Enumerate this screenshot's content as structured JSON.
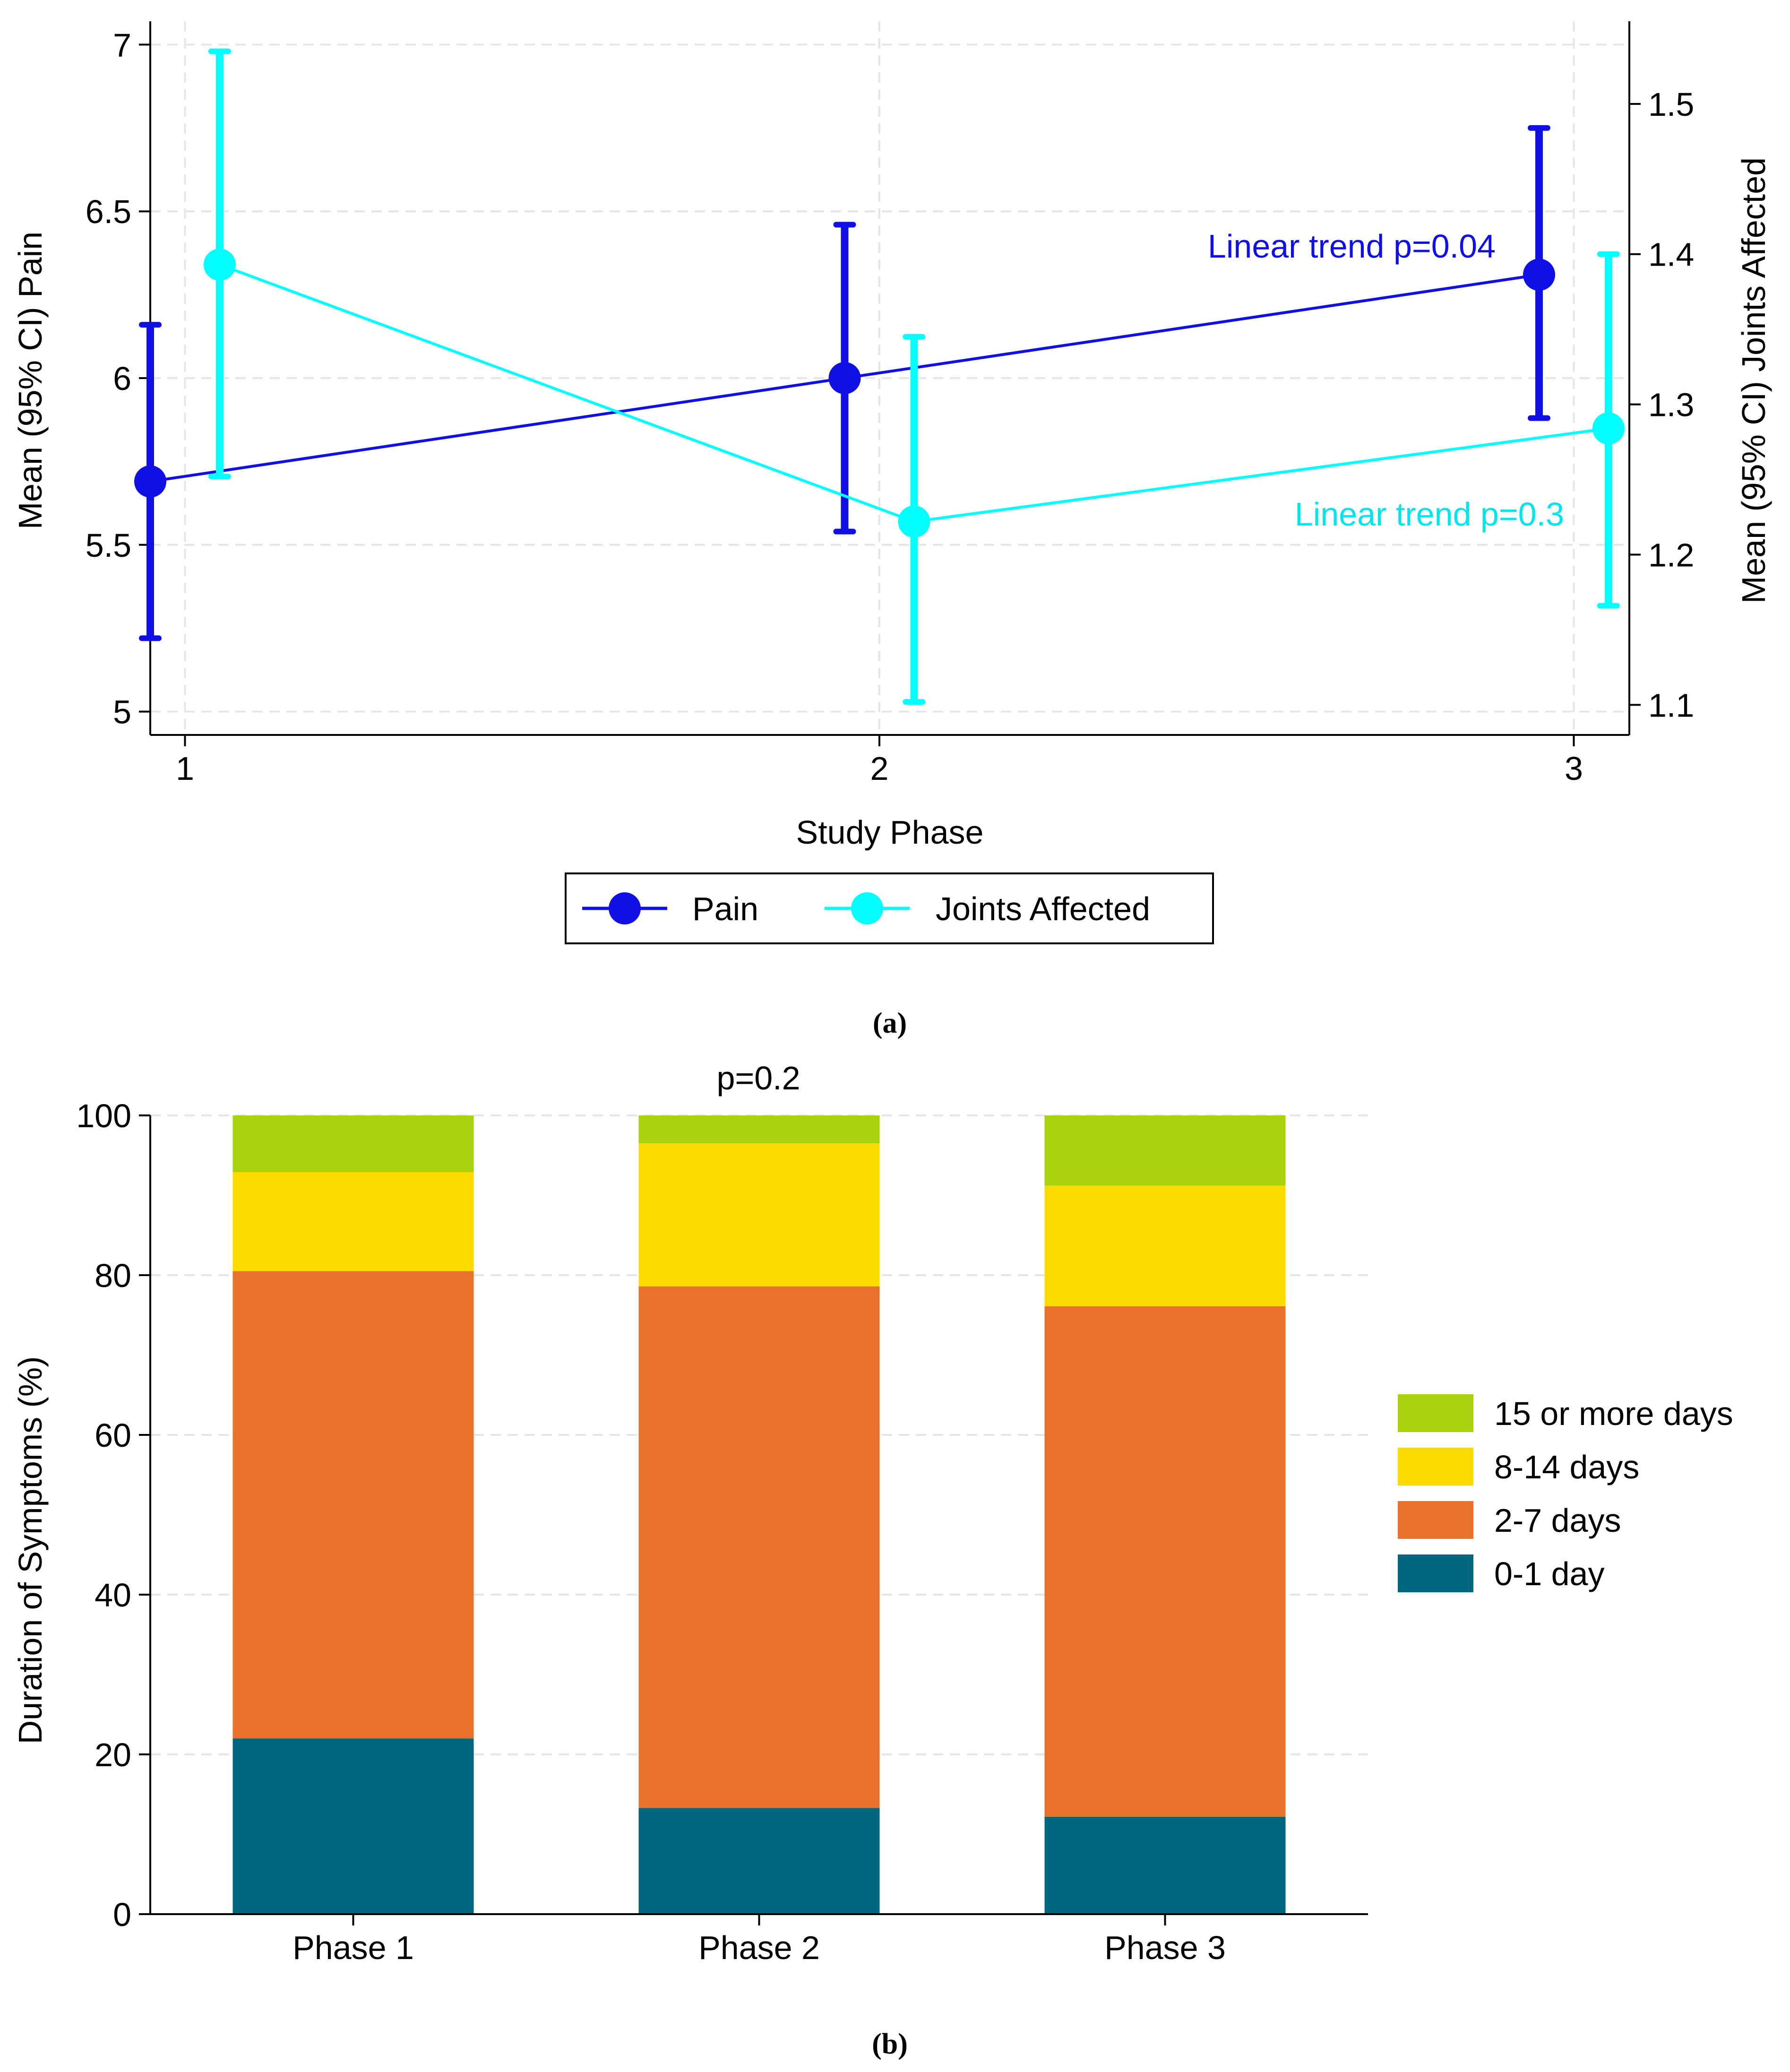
{
  "figure": {
    "panel_a_caption": "(a)",
    "panel_b_caption": "(b)"
  },
  "chart_data": [
    {
      "type": "line",
      "title": "",
      "xlabel": "Study Phase",
      "ylabel_left": "Mean (95% CI) Pain",
      "ylabel_right": "Mean (95% CI) Joints Affected",
      "x_ticks": [
        1,
        2,
        3
      ],
      "xlim": [
        0.95,
        3.08
      ],
      "ylim_left": [
        4.93,
        7.07
      ],
      "yticks_left": [
        "5",
        "5.5",
        "6",
        "6.5",
        "7"
      ],
      "yticks_left_values": [
        5,
        5.5,
        6,
        6.5,
        7
      ],
      "ylim_right": [
        1.08,
        1.555
      ],
      "yticks_right": [
        "1.1",
        "1.2",
        "1.3",
        "1.4",
        "1.5"
      ],
      "yticks_right_values": [
        1.1,
        1.2,
        1.3,
        1.4,
        1.5
      ],
      "grid": true,
      "legend_placement": "bottom",
      "series": [
        {
          "name": "Pain",
          "axis": "left",
          "color": "#1010e6",
          "x": [
            0.95,
            1.95,
            2.95
          ],
          "y": [
            5.69,
            6.0,
            6.31
          ],
          "ci_low": [
            5.22,
            5.54,
            5.88
          ],
          "ci_high": [
            6.16,
            6.46,
            6.75
          ]
        },
        {
          "name": "Joints Affected",
          "axis": "right",
          "color": "#00ffff",
          "x": [
            1.05,
            2.05,
            3.05
          ],
          "y": [
            1.393,
            1.222,
            1.284
          ],
          "ci_low": [
            1.252,
            1.102,
            1.166
          ],
          "ci_high": [
            1.535,
            1.345,
            1.4
          ]
        }
      ],
      "annotations": [
        {
          "text": "Linear trend p=0.04",
          "color": "#1010e6"
        },
        {
          "text": "Linear trend p=0.3",
          "color": "#00e5ee"
        }
      ]
    },
    {
      "type": "bar",
      "stacked": true,
      "title": "",
      "xlabel": "",
      "ylabel": "Duration of Symptoms (%)",
      "categories": [
        "Phase 1",
        "Phase 2",
        "Phase 3"
      ],
      "ylim": [
        0,
        100
      ],
      "yticks": [
        0,
        20,
        40,
        60,
        80,
        100
      ],
      "grid": true,
      "legend_placement": "right",
      "series": [
        {
          "name": "0-1 day",
          "color": "#00677f",
          "values": [
            22,
            13.3,
            12.2
          ]
        },
        {
          "name": "2-7 days",
          "color": "#e8722c",
          "values": [
            58.5,
            65.3,
            63.9
          ]
        },
        {
          "name": "8-14 days",
          "color": "#fedb00",
          "values": [
            12.4,
            17.9,
            15.1
          ]
        },
        {
          "name": "15 or more days",
          "color": "#a8d20e",
          "values": [
            7.1,
            3.5,
            8.8
          ]
        }
      ],
      "legend_order": [
        "15 or more days",
        "8-14 days",
        "2-7 days",
        "0-1 day"
      ],
      "annotations": [
        {
          "text": "p=0.2"
        }
      ]
    }
  ]
}
